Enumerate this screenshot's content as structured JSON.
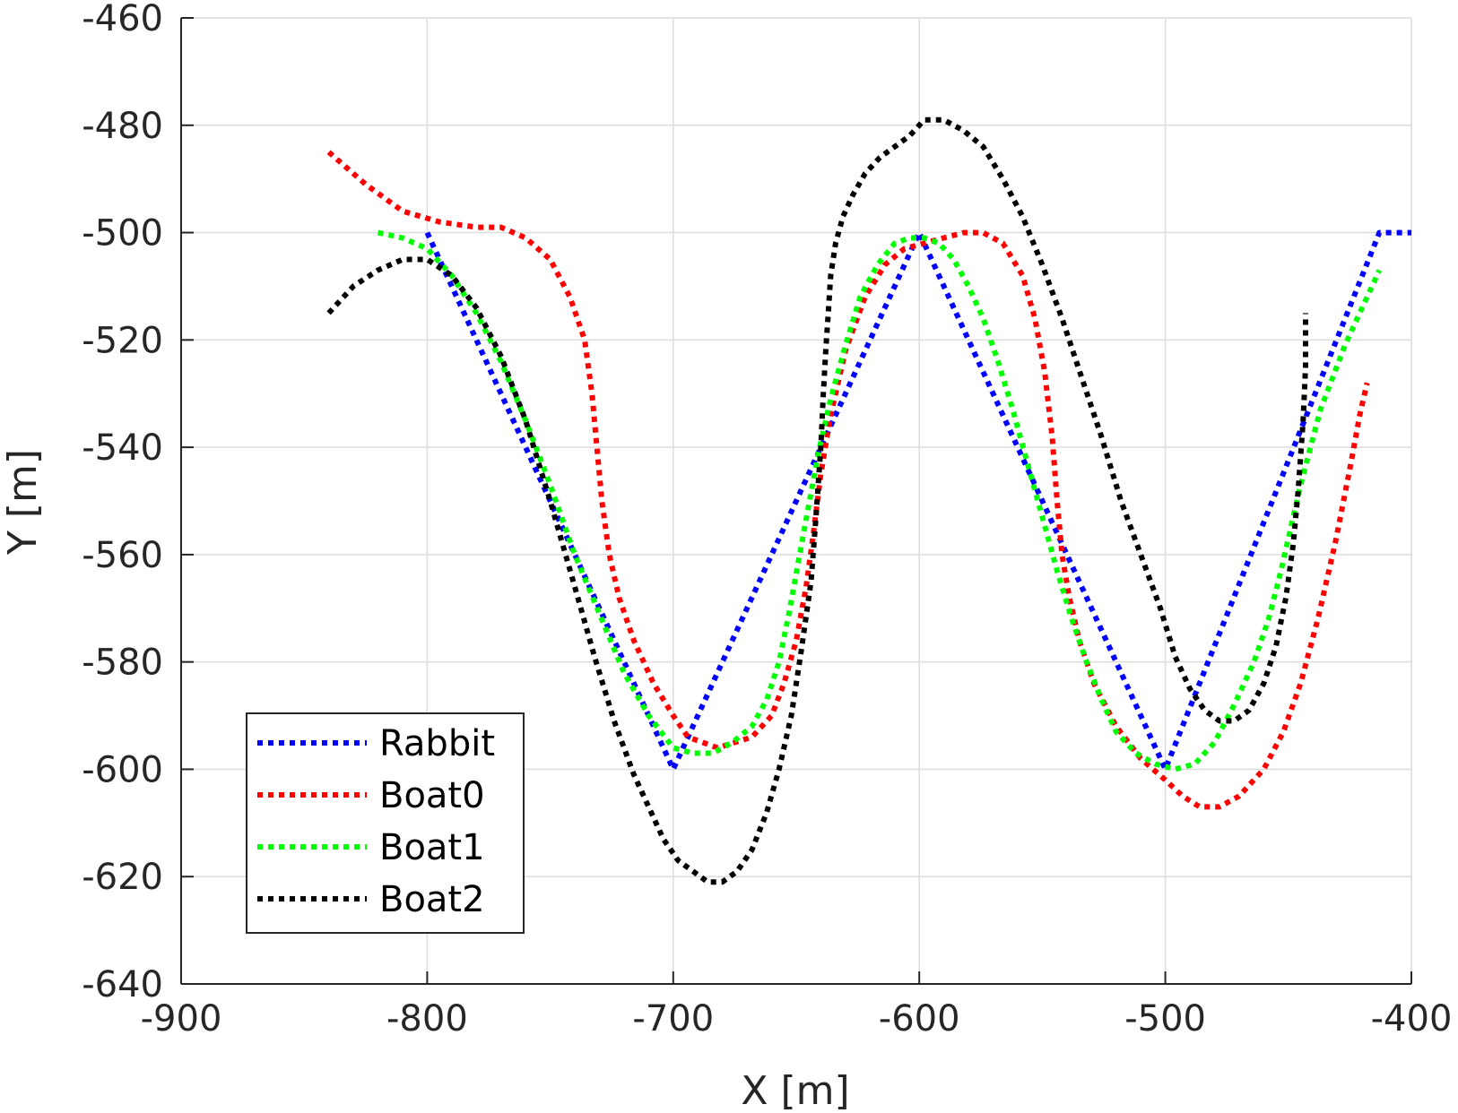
{
  "chart_data": {
    "type": "line",
    "title": "",
    "xlabel": "X [m]",
    "ylabel": "Y [m]",
    "xlim": [
      -900,
      -400
    ],
    "ylim": [
      -640,
      -460
    ],
    "xticks": [
      -900,
      -800,
      -700,
      -600,
      -500,
      -400
    ],
    "yticks": [
      -640,
      -620,
      -600,
      -580,
      -560,
      -540,
      -520,
      -500,
      -480,
      -460
    ],
    "xtick_labels": [
      "-900",
      "-800",
      "-700",
      "-600",
      "-500",
      "-400"
    ],
    "ytick_labels": [
      "-640",
      "-620",
      "-600",
      "-580",
      "-560",
      "-540",
      "-520",
      "-500",
      "-480",
      "-460"
    ],
    "grid": true,
    "legend_position": "bottom-left",
    "line_style": "dotted",
    "series": [
      {
        "name": "Rabbit",
        "color": "#0000ff",
        "x": [
          -800,
          -700,
          -600,
          -500,
          -413,
          -400
        ],
        "y": [
          -500,
          -600,
          -500,
          -600,
          -500,
          -500
        ]
      },
      {
        "name": "Boat0",
        "color": "#ff0000",
        "x": [
          -840,
          -825,
          -810,
          -795,
          -780,
          -770,
          -760,
          -750,
          -742,
          -736,
          -733,
          -731,
          -729,
          -726,
          -722,
          -716,
          -708,
          -700,
          -694,
          -688,
          -682,
          -675,
          -668,
          -660,
          -655,
          -650,
          -646,
          -643,
          -640,
          -636,
          -630,
          -622,
          -614,
          -606,
          -598,
          -590,
          -582,
          -574,
          -566,
          -558,
          -553,
          -549,
          -546,
          -544,
          -542,
          -539,
          -535,
          -529,
          -520,
          -510,
          -500,
          -493,
          -486,
          -478,
          -470,
          -460,
          -452,
          -445,
          -438,
          -431,
          -425,
          -421,
          -418
        ],
        "y": [
          -485,
          -491,
          -496,
          -498,
          -499,
          -499,
          -501,
          -505,
          -512,
          -520,
          -530,
          -540,
          -550,
          -560,
          -568,
          -576,
          -584,
          -590,
          -594,
          -595,
          -596,
          -595,
          -594,
          -590,
          -584,
          -576,
          -566,
          -556,
          -545,
          -534,
          -522,
          -512,
          -506,
          -503,
          -502,
          -501,
          -500,
          -500,
          -502,
          -508,
          -516,
          -526,
          -538,
          -550,
          -560,
          -568,
          -576,
          -584,
          -592,
          -598,
          -602,
          -605,
          -607,
          -607,
          -605,
          -600,
          -593,
          -584,
          -572,
          -558,
          -544,
          -534,
          -528
        ]
      },
      {
        "name": "Boat1",
        "color": "#00ff00",
        "x": [
          -820,
          -810,
          -800,
          -790,
          -780,
          -770,
          -760,
          -750,
          -740,
          -730,
          -720,
          -710,
          -700,
          -692,
          -684,
          -676,
          -668,
          -662,
          -657,
          -653,
          -649,
          -645,
          -641,
          -636,
          -630,
          -624,
          -617,
          -610,
          -604,
          -598,
          -592,
          -586,
          -580,
          -574,
          -568,
          -562,
          -556,
          -550,
          -544,
          -538,
          -532,
          -526,
          -520,
          -512,
          -504,
          -496,
          -488,
          -480,
          -472,
          -464,
          -458,
          -453,
          -449,
          -445,
          -441,
          -437,
          -432,
          -427,
          -422,
          -417,
          -413
        ],
        "y": [
          -500,
          -501,
          -503,
          -508,
          -515,
          -524,
          -535,
          -547,
          -560,
          -571,
          -582,
          -590,
          -596,
          -597,
          -597,
          -595,
          -592,
          -587,
          -580,
          -571,
          -561,
          -551,
          -541,
          -531,
          -521,
          -512,
          -506,
          -502,
          -501,
          -501,
          -502,
          -505,
          -510,
          -516,
          -524,
          -533,
          -543,
          -553,
          -563,
          -572,
          -580,
          -587,
          -593,
          -597,
          -599,
          -600,
          -599,
          -595,
          -588,
          -580,
          -572,
          -563,
          -555,
          -547,
          -540,
          -533,
          -527,
          -521,
          -516,
          -511,
          -507
        ]
      },
      {
        "name": "Boat2",
        "color": "#000000",
        "x": [
          -840,
          -830,
          -820,
          -810,
          -800,
          -790,
          -780,
          -770,
          -760,
          -750,
          -740,
          -732,
          -724,
          -716,
          -710,
          -704,
          -698,
          -692,
          -686,
          -680,
          -674,
          -668,
          -662,
          -657,
          -652,
          -648,
          -644,
          -642,
          -640,
          -639,
          -638,
          -637,
          -636,
          -634,
          -631,
          -627,
          -622,
          -616,
          -610,
          -604,
          -598,
          -590,
          -582,
          -574,
          -566,
          -558,
          -550,
          -542,
          -534,
          -526,
          -518,
          -510,
          -502,
          -496,
          -490,
          -484,
          -478,
          -472,
          -466,
          -460,
          -455,
          -451,
          -448,
          -446,
          -444,
          -443,
          -443
        ],
        "y": [
          -515,
          -510,
          -507,
          -505,
          -505,
          -508,
          -514,
          -523,
          -535,
          -550,
          -566,
          -579,
          -591,
          -601,
          -607,
          -613,
          -617,
          -619,
          -621,
          -621,
          -619,
          -615,
          -608,
          -600,
          -590,
          -578,
          -565,
          -553,
          -540,
          -530,
          -522,
          -515,
          -508,
          -502,
          -497,
          -493,
          -489,
          -486,
          -484,
          -482,
          -479,
          -479,
          -481,
          -484,
          -490,
          -497,
          -506,
          -516,
          -527,
          -538,
          -550,
          -560,
          -570,
          -579,
          -585,
          -589,
          -591,
          -591,
          -589,
          -584,
          -577,
          -568,
          -558,
          -548,
          -535,
          -525,
          -515
        ]
      }
    ]
  }
}
